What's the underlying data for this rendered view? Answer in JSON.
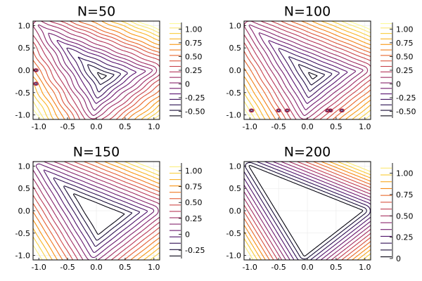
{
  "figure": {
    "layout": "2x2 contour grid"
  },
  "chart_data": [
    {
      "type": "contour",
      "title": "N=50",
      "xlim": [
        -1.1,
        1.1
      ],
      "ylim": [
        -1.1,
        1.1
      ],
      "xticks": [
        -1.0,
        -0.5,
        0.0,
        0.5,
        1.0
      ],
      "xtick_labels": [
        "-1.0",
        "-0.5",
        "0.0",
        "0.5",
        "1.0"
      ],
      "yticks": [
        -1.0,
        -0.5,
        0.0,
        0.5,
        1.0
      ],
      "ytick_labels": [
        "-1.0",
        "-0.5",
        "0.0",
        "0.5",
        "1.0"
      ],
      "colorbar": {
        "range": [
          -0.62,
          1.12
        ],
        "ticks": [
          -0.5,
          -0.25,
          0,
          0.25,
          0.5,
          0.75,
          1.0
        ],
        "labels": [
          "-0.50",
          "-0.25",
          "0",
          "0.25",
          "0.50",
          "0.75",
          "1.00"
        ],
        "colormap": "inferno"
      },
      "levels": [
        -0.58,
        -0.48,
        -0.38,
        -0.28,
        -0.18,
        -0.08,
        0.02,
        0.12,
        0.22,
        0.32,
        0.42,
        0.52,
        0.62,
        0.72,
        0.82,
        0.92,
        1.02,
        1.1
      ],
      "noise": 0.02,
      "artifacts": [
        {
          "x": -1.05,
          "y": 0.0
        },
        {
          "x": -1.05,
          "y": -0.3
        }
      ]
    },
    {
      "type": "contour",
      "title": "N=100",
      "xlim": [
        -1.1,
        1.1
      ],
      "ylim": [
        -1.1,
        1.1
      ],
      "xticks": [
        -1.0,
        -0.5,
        0.0,
        0.5,
        1.0
      ],
      "xtick_labels": [
        "-1.0",
        "-0.5",
        "0.0",
        "0.5",
        "1.0"
      ],
      "yticks": [
        -1.0,
        -0.5,
        0.0,
        0.5,
        1.0
      ],
      "ytick_labels": [
        "-1.0",
        "-0.5",
        "0.0",
        "0.5",
        "1.0"
      ],
      "colorbar": {
        "range": [
          -0.62,
          1.12
        ],
        "ticks": [
          -0.5,
          -0.25,
          0,
          0.25,
          0.5,
          0.75,
          1.0
        ],
        "labels": [
          "-0.50",
          "-0.25",
          "0",
          "0.25",
          "0.50",
          "0.75",
          "1.00"
        ],
        "colormap": "inferno"
      },
      "levels": [
        -0.58,
        -0.48,
        -0.38,
        -0.28,
        -0.18,
        -0.08,
        0.02,
        0.12,
        0.22,
        0.32,
        0.42,
        0.52,
        0.62,
        0.72,
        0.82,
        0.92,
        1.02,
        1.1
      ],
      "noise": 0.006,
      "artifacts": [
        {
          "x": -0.97,
          "y": -0.9
        },
        {
          "x": -0.5,
          "y": -0.9
        },
        {
          "x": -0.35,
          "y": -0.9
        },
        {
          "x": 0.35,
          "y": -0.9
        },
        {
          "x": 0.4,
          "y": -0.9
        },
        {
          "x": 0.6,
          "y": -0.9
        }
      ]
    },
    {
      "type": "contour",
      "title": "N=150",
      "xlim": [
        -1.1,
        1.1
      ],
      "ylim": [
        -1.1,
        1.1
      ],
      "xticks": [
        -1.0,
        -0.5,
        0.0,
        0.5,
        1.0
      ],
      "xtick_labels": [
        "-1.0",
        "-0.5",
        "0.0",
        "0.5",
        "1.0"
      ],
      "yticks": [
        -1.0,
        -0.5,
        0.0,
        0.5,
        1.0
      ],
      "ytick_labels": [
        "-1.0",
        "-0.5",
        "0.0",
        "0.5",
        "1.0"
      ],
      "colorbar": {
        "range": [
          -0.38,
          1.12
        ],
        "ticks": [
          -0.25,
          0,
          0.25,
          0.5,
          0.75,
          1.0
        ],
        "labels": [
          "-0.25",
          "0",
          "0.25",
          "0.50",
          "0.75",
          "1.00"
        ],
        "colormap": "inferno"
      },
      "levels": [
        -0.34,
        -0.24,
        -0.14,
        -0.04,
        0.06,
        0.16,
        0.26,
        0.36,
        0.46,
        0.56,
        0.66,
        0.76,
        0.86,
        0.96,
        1.06
      ],
      "noise": 0.003,
      "artifacts": []
    },
    {
      "type": "contour",
      "title": "N=200",
      "xlim": [
        -1.1,
        1.1
      ],
      "ylim": [
        -1.1,
        1.1
      ],
      "xticks": [
        -1.0,
        -0.5,
        0.0,
        0.5,
        1.0
      ],
      "xtick_labels": [
        "-1.0",
        "-0.5",
        "0.0",
        "0.5",
        "1.0"
      ],
      "yticks": [
        -1.0,
        -0.5,
        0.0,
        0.5,
        1.0
      ],
      "ytick_labels": [
        "-1.0",
        "-0.5",
        "0.0",
        "0.5",
        "1.0"
      ],
      "colorbar": {
        "range": [
          0.0,
          1.12
        ],
        "ticks": [
          0,
          0.25,
          0.5,
          0.75,
          1.0
        ],
        "labels": [
          "0",
          "0.25",
          "0.50",
          "0.75",
          "1.00"
        ],
        "colormap": "inferno"
      },
      "levels": [
        0.02,
        0.1,
        0.18,
        0.26,
        0.34,
        0.42,
        0.5,
        0.58,
        0.66,
        0.74,
        0.82,
        0.9,
        0.98,
        1.06
      ],
      "noise": 0.0,
      "artifacts": []
    }
  ]
}
